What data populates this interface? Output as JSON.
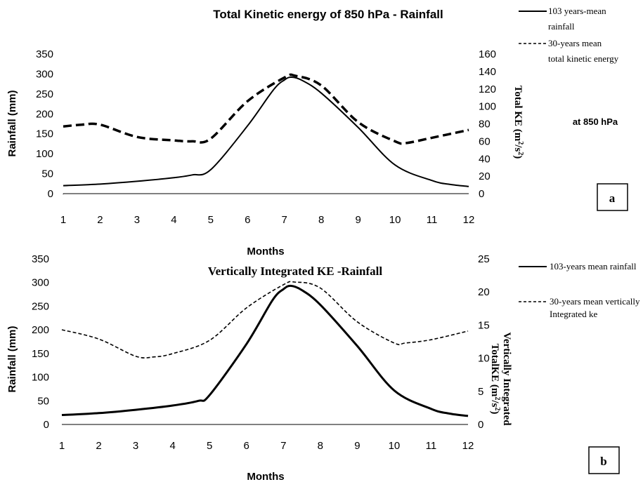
{
  "chart_data": [
    {
      "id": "a",
      "type": "line",
      "title": "Total Kinetic energy of 850 hPa - Rainfall",
      "xlabel": "Months",
      "ylabel_left": "Rainfall (mm)",
      "ylabel_right": [
        "Total KE  (m",
        "2",
        "/s",
        "2",
        ")"
      ],
      "xlim": [
        1,
        12
      ],
      "ylim_left": [
        0,
        350
      ],
      "ylim_right": [
        0,
        160
      ],
      "x_ticks": [
        "1",
        "2",
        "3",
        "4",
        "5",
        "6",
        "7",
        "8",
        "9",
        "10",
        "11",
        "12"
      ],
      "y_ticks_left": [
        "0",
        "50",
        "100",
        "150",
        "200",
        "250",
        "300",
        "350"
      ],
      "y_ticks_right": [
        "0",
        "20",
        "40",
        "60",
        "80",
        "100",
        "120",
        "140",
        "160"
      ],
      "legend_position": "top-right",
      "annotation": "at 850 hPa",
      "badge": "a",
      "series": [
        {
          "name": "103 years-mean rainfall",
          "legend_lines": [
            "103 years-mean",
            "rainfall"
          ],
          "axis": "left",
          "style": "solid",
          "x": [
            1,
            2,
            3,
            4,
            4.5,
            5,
            6,
            6.7,
            7,
            7.2,
            7.5,
            8,
            9,
            10,
            11,
            11.5,
            12
          ],
          "y": [
            20,
            24,
            31,
            40,
            47,
            60,
            170,
            260,
            285,
            292,
            283,
            252,
            166,
            72,
            33,
            23,
            18
          ]
        },
        {
          "name": "30-years mean total kinetic energy",
          "legend_lines": [
            "30-years mean",
            "total kinetic energy"
          ],
          "axis": "right",
          "style": "dashed",
          "x": [
            1,
            1.5,
            2,
            3,
            4,
            4.5,
            5,
            6,
            7,
            7.3,
            8,
            9,
            10,
            10.3,
            11,
            12
          ],
          "y": [
            77,
            79,
            79,
            65,
            61,
            60,
            63,
            106,
            133,
            135,
            124,
            82,
            60,
            58,
            64,
            73
          ]
        }
      ]
    },
    {
      "id": "b",
      "type": "line",
      "title": "Vertically Integrated KE -Rainfall",
      "xlabel": "Months",
      "ylabel_left": "Rainfall (mm)",
      "ylabel_right_line1": "Vertically Integrated",
      "ylabel_right_line2": [
        "TotalKE  (m",
        "2",
        "/s",
        "2",
        ")"
      ],
      "xlim": [
        1,
        12
      ],
      "ylim_left": [
        0,
        350
      ],
      "ylim_right": [
        0,
        25
      ],
      "x_ticks": [
        "1",
        "2",
        "3",
        "4",
        "5",
        "6",
        "7",
        "8",
        "9",
        "10",
        "11",
        "12"
      ],
      "y_ticks_left": [
        "0",
        "50",
        "100",
        "150",
        "200",
        "250",
        "300",
        "350"
      ],
      "y_ticks_right": [
        "0",
        "5",
        "10",
        "15",
        "20",
        "25"
      ],
      "legend_position": "top-right",
      "badge": "b",
      "series": [
        {
          "name": "103-years mean rainfall",
          "legend_lines": [
            "103-years mean rainfall"
          ],
          "axis": "left",
          "style": "solid",
          "x": [
            1,
            2,
            3,
            4,
            4.7,
            5,
            6,
            6.7,
            7,
            7.2,
            7.5,
            8,
            9,
            10,
            11,
            11.5,
            12
          ],
          "y": [
            20,
            24,
            31,
            40,
            50,
            62,
            170,
            262,
            286,
            293,
            284,
            253,
            166,
            72,
            33,
            23,
            18
          ]
        },
        {
          "name": "30-years mean vertically Integrated ke",
          "legend_lines": [
            "30-years mean vertically",
            "Integrated ke"
          ],
          "axis": "right",
          "style": "dashed",
          "x": [
            1,
            2,
            3,
            3.5,
            4,
            5,
            6,
            7,
            7.3,
            8,
            9,
            10,
            10.3,
            11,
            12
          ],
          "y": [
            14.3,
            12.9,
            10.3,
            10.2,
            10.7,
            12.7,
            17.6,
            21.1,
            21.5,
            20.6,
            15.5,
            12.3,
            12.3,
            12.8,
            14.1
          ]
        }
      ]
    }
  ]
}
